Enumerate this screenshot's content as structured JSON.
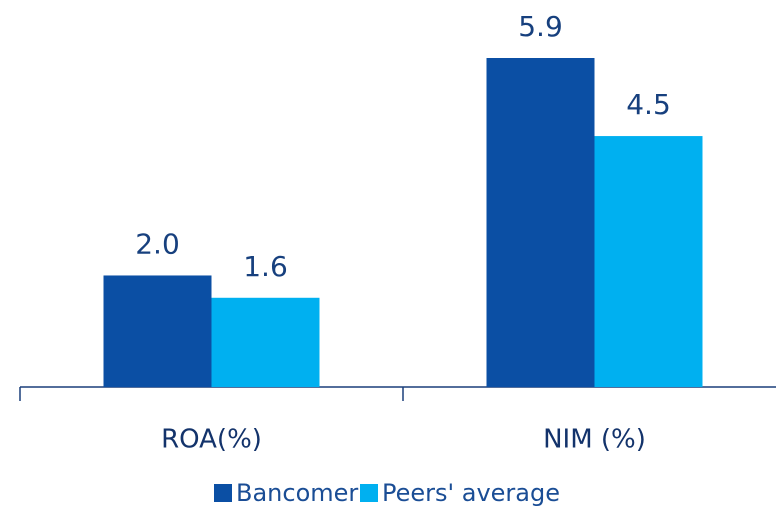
{
  "chart_data": {
    "type": "bar",
    "categories": [
      "ROA(%)",
      "NIM (%)"
    ],
    "series": [
      {
        "name": "Bancomer",
        "color": "#0b4fa4",
        "values": [
          2,
          5.9
        ],
        "value_labels": [
          "2.0",
          "5.9"
        ]
      },
      {
        "name": "Peers' average",
        "color": "#00b0f0",
        "values": [
          1.6,
          4.5
        ]
      }
    ],
    "legend": "bottom"
  }
}
